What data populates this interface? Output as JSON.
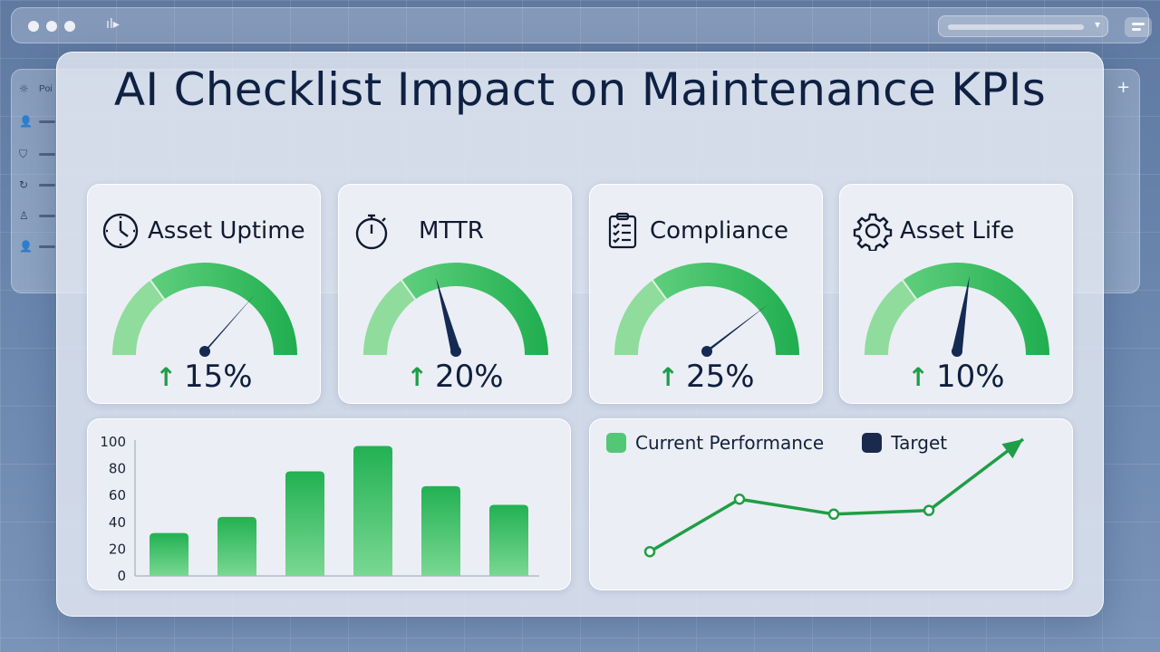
{
  "title": "AI Checklist Impact on Maintenance KPIs",
  "background_window": {
    "toolbar_glyph": "ıl▸",
    "sidebar_items": [
      {
        "icon": "sun-icon",
        "glyph": "☼",
        "label": "Poi"
      },
      {
        "icon": "user-icon",
        "glyph": "👤",
        "label": ""
      },
      {
        "icon": "shield-icon",
        "glyph": "⛉",
        "label": ""
      },
      {
        "icon": "refresh-icon",
        "glyph": "↻",
        "label": ""
      },
      {
        "icon": "person-icon",
        "glyph": "♙",
        "label": ""
      },
      {
        "icon": "user-icon",
        "glyph": "👤",
        "label": ""
      }
    ],
    "plus_glyph": "+",
    "chevron_glyph": "▾"
  },
  "kpis": [
    {
      "name": "Asset Uptime",
      "icon": "clock-icon",
      "delta": "15%",
      "arrow": "↑",
      "needle_level": 0.72
    },
    {
      "name": "MTTR",
      "icon": "stopwatch-icon",
      "delta": "20%",
      "arrow": "↑",
      "needle_level": 0.42
    },
    {
      "name": "Compliance",
      "icon": "checklist-icon",
      "delta": "25%",
      "arrow": "↑",
      "needle_level": 0.78
    },
    {
      "name": "Asset Life",
      "icon": "gear-icon",
      "delta": "10%",
      "arrow": "↑",
      "needle_level": 0.55
    }
  ],
  "colors": {
    "gauge_light": "#8fdc9c",
    "gauge_dark": "#1fae4f",
    "needle": "#142a52",
    "arrow_green": "#1e9e47",
    "bar_top": "#22b153",
    "bar_bottom": "#7ad892",
    "line": "#1f9e45",
    "legend_current": "#52c775",
    "legend_target": "#1a2a4e"
  },
  "chart_data": [
    {
      "type": "bar",
      "categories": [
        "",
        "",
        "",
        "",
        "",
        ""
      ],
      "values": [
        32,
        44,
        78,
        97,
        67,
        53
      ],
      "ylim": [
        0,
        100
      ],
      "yticks": [
        "0",
        "20",
        "40",
        "60",
        "80",
        "100"
      ],
      "title": "",
      "xlabel": "",
      "ylabel": ""
    },
    {
      "type": "line",
      "legend": [
        "Current Performance",
        "Target"
      ],
      "series": [
        {
          "name": "Current Performance",
          "values": [
            10,
            52,
            40,
            43,
            100
          ]
        }
      ],
      "title": "",
      "xlabel": "",
      "ylabel": ""
    }
  ]
}
